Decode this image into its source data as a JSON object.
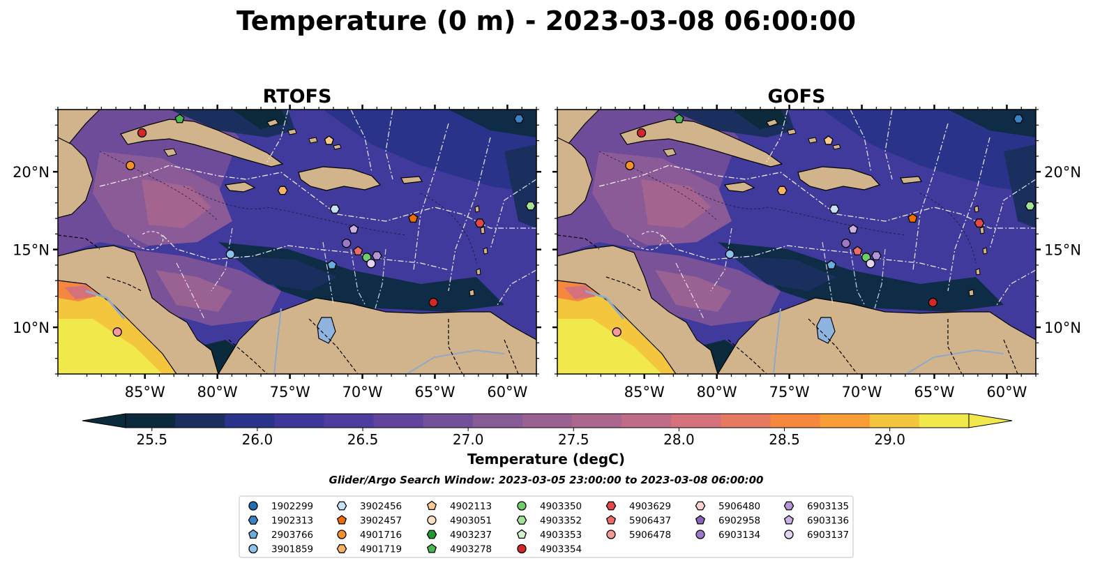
{
  "title": "Temperature (0 m) - 2023-03-08 06:00:00",
  "chart_data": {
    "type": "heatmap",
    "title": "Temperature (0 m) - 2023-03-08 06:00:00",
    "panels": [
      {
        "title": "RTOFS"
      },
      {
        "title": "GOFS"
      }
    ],
    "xlim": [
      -91,
      -58
    ],
    "ylim": [
      7,
      24
    ],
    "x_ticks": [
      -85,
      -80,
      -75,
      -70,
      -65,
      -60
    ],
    "x_tick_labels": [
      "85°W",
      "80°W",
      "75°W",
      "70°W",
      "65°W",
      "60°W"
    ],
    "y_ticks": [
      10,
      15,
      20
    ],
    "y_tick_labels": [
      "10°N",
      "15°N",
      "20°N"
    ],
    "colorbar": {
      "label": "Temperature (degC)",
      "range": [
        25.375,
        29.375
      ],
      "step": 0.25,
      "ticks": [
        25.5,
        26.0,
        26.5,
        27.0,
        27.5,
        28.0,
        28.5,
        29.0
      ],
      "tick_labels": [
        "25.5",
        "26.0",
        "26.5",
        "27.0",
        "27.5",
        "28.0",
        "28.5",
        "29.0"
      ],
      "colors": [
        "#0b2a3c",
        "#1b2f5e",
        "#2a338a",
        "#3d3799",
        "#4e3d9e",
        "#60449e",
        "#73509a",
        "#875b96",
        "#9a6293",
        "#ac678f",
        "#c06b88",
        "#d4717b",
        "#e67a62",
        "#f5873f",
        "#fa9d36",
        "#f4c63e",
        "#f1e94c"
      ],
      "extend": "both"
    },
    "subtitle": "Glider/Argo Search Window: 2023-03-05 23:00:00 to 2023-03-08 06:00:00",
    "legend_columns": [
      [
        {
          "id": "1902299",
          "marker": "circle",
          "color": "#1f6fb4"
        },
        {
          "id": "1902313",
          "marker": "hexagon",
          "color": "#3a83c4"
        },
        {
          "id": "2903766",
          "marker": "pentagon",
          "color": "#6aaee0"
        },
        {
          "id": "3901859",
          "marker": "circle",
          "color": "#8cc2ec"
        }
      ],
      [
        {
          "id": "3902456",
          "marker": "hexagon",
          "color": "#c7e2f5"
        },
        {
          "id": "3902457",
          "marker": "pentagon",
          "color": "#ef6c00"
        },
        {
          "id": "4901716",
          "marker": "circle",
          "color": "#f6922c"
        },
        {
          "id": "4901719",
          "marker": "hexagon",
          "color": "#fab266"
        }
      ],
      [
        {
          "id": "4902113",
          "marker": "pentagon",
          "color": "#fcc98f"
        },
        {
          "id": "4903051",
          "marker": "circle",
          "color": "#fde1c2"
        },
        {
          "id": "4903237",
          "marker": "hexagon",
          "color": "#1e9a2c"
        },
        {
          "id": "4903278",
          "marker": "pentagon",
          "color": "#49b84e"
        }
      ],
      [
        {
          "id": "4903350",
          "marker": "circle",
          "color": "#6fce6a"
        },
        {
          "id": "4903352",
          "marker": "hexagon",
          "color": "#a4e29a"
        },
        {
          "id": "4903353",
          "marker": "pentagon",
          "color": "#d2f2cb"
        },
        {
          "id": "4903354",
          "marker": "circle",
          "color": "#d62728"
        }
      ],
      [
        {
          "id": "4903629",
          "marker": "hexagon",
          "color": "#e4484a"
        },
        {
          "id": "5906437",
          "marker": "pentagon",
          "color": "#ee6b6b"
        },
        {
          "id": "5906478",
          "marker": "circle",
          "color": "#f59a98"
        }
      ],
      [
        {
          "id": "5906480",
          "marker": "hexagon",
          "color": "#fbd0cf"
        },
        {
          "id": "6902958",
          "marker": "pentagon",
          "color": "#8a63bb"
        },
        {
          "id": "6903134",
          "marker": "circle",
          "color": "#9b79c8"
        }
      ],
      [
        {
          "id": "6903135",
          "marker": "hexagon",
          "color": "#b495d8"
        },
        {
          "id": "6903136",
          "marker": "pentagon",
          "color": "#c9b0e5"
        },
        {
          "id": "6903137",
          "marker": "circle",
          "color": "#e3d4f3"
        }
      ]
    ],
    "floats": [
      {
        "id": "1902313",
        "lon": -59.2,
        "lat": 23.4
      },
      {
        "id": "4903278",
        "lon": -82.6,
        "lat": 23.4
      },
      {
        "id": "4903354",
        "lon": -85.2,
        "lat": 22.5
      },
      {
        "id": "4901716",
        "lon": -86.0,
        "lat": 20.4
      },
      {
        "id": "4902113",
        "lon": -72.3,
        "lat": 22.0
      },
      {
        "id": "4901719",
        "lon": -75.5,
        "lat": 18.8
      },
      {
        "id": "3902457",
        "lon": -66.5,
        "lat": 17.0
      },
      {
        "id": "3902456",
        "lon": -71.9,
        "lat": 17.6
      },
      {
        "id": "4903352",
        "lon": -58.4,
        "lat": 17.8
      },
      {
        "id": "6903136",
        "lon": -70.6,
        "lat": 16.3
      },
      {
        "id": "6903134",
        "lon": -71.1,
        "lat": 15.4
      },
      {
        "id": "5906437",
        "lon": -70.3,
        "lat": 14.9
      },
      {
        "id": "3901859",
        "lon": -79.1,
        "lat": 14.7
      },
      {
        "id": "4903350",
        "lon": -69.7,
        "lat": 14.5
      },
      {
        "id": "6903135",
        "lon": -69.0,
        "lat": 14.6
      },
      {
        "id": "6903137",
        "lon": -69.4,
        "lat": 14.1
      },
      {
        "id": "2903766",
        "lon": -72.1,
        "lat": 14.0
      },
      {
        "id": "4903629",
        "lon": -61.9,
        "lat": 16.7
      },
      {
        "id": "5906478",
        "lon": -86.9,
        "lat": 9.7
      },
      {
        "id": "4903354",
        "lon": -65.1,
        "lat": 11.6
      }
    ]
  }
}
